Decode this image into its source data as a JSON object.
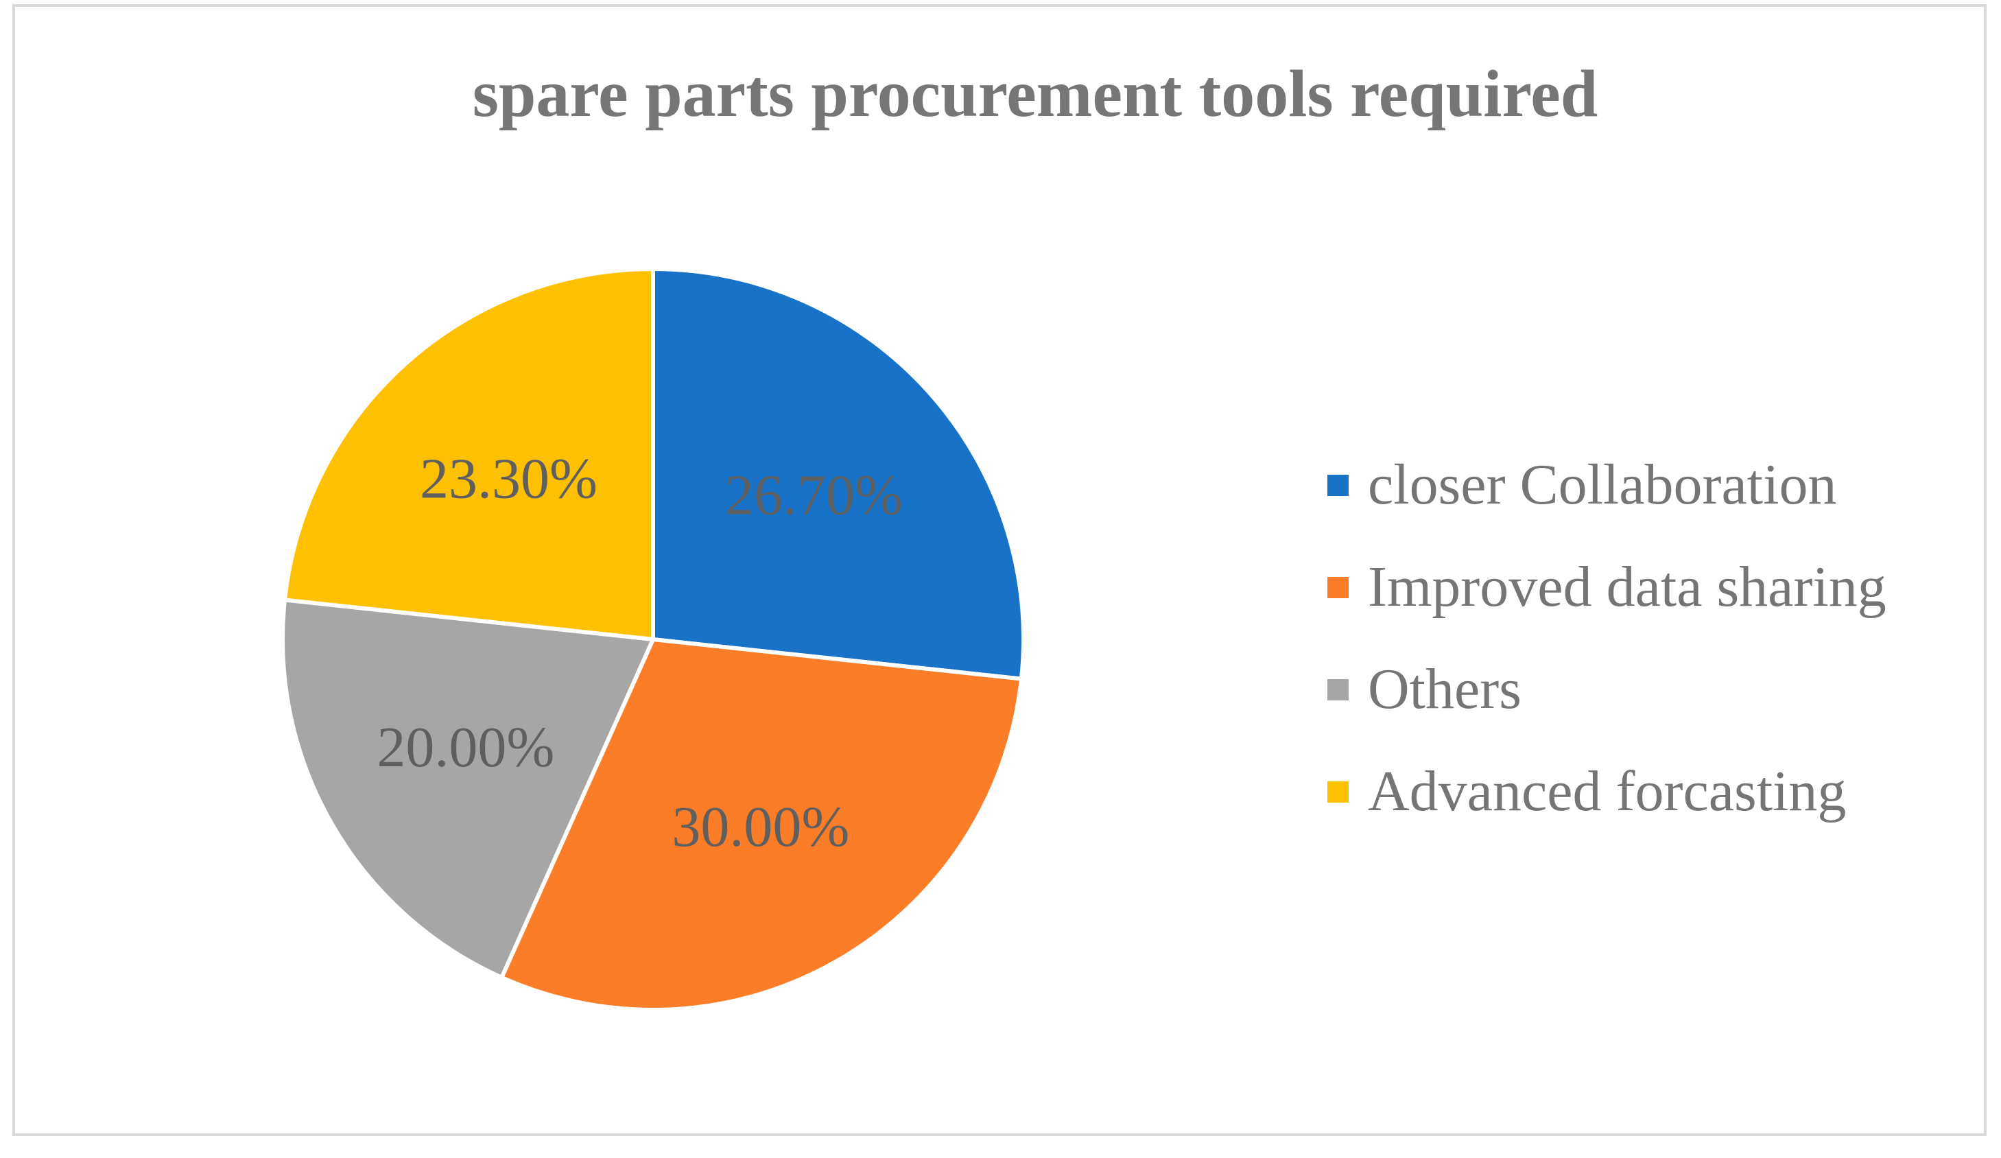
{
  "chart_data": {
    "type": "pie",
    "title": "spare parts procurement tools required",
    "slices": [
      {
        "label": "closer Collaboration",
        "value": 26.7,
        "display": "26.70%",
        "color": "#1873c8"
      },
      {
        "label": "Improved data sharing",
        "value": 30.0,
        "display": "30.00%",
        "color": "#fb7d28"
      },
      {
        "label": "Others",
        "value": 20.0,
        "display": "20.00%",
        "color": "#a6a6a6"
      },
      {
        "label": "Advanced forcasting",
        "value": 23.3,
        "display": "23.30%",
        "color": "#fec002"
      }
    ],
    "start_angle_deg": 0,
    "direction": "clockwise",
    "legend_position": "right",
    "grid": false
  }
}
